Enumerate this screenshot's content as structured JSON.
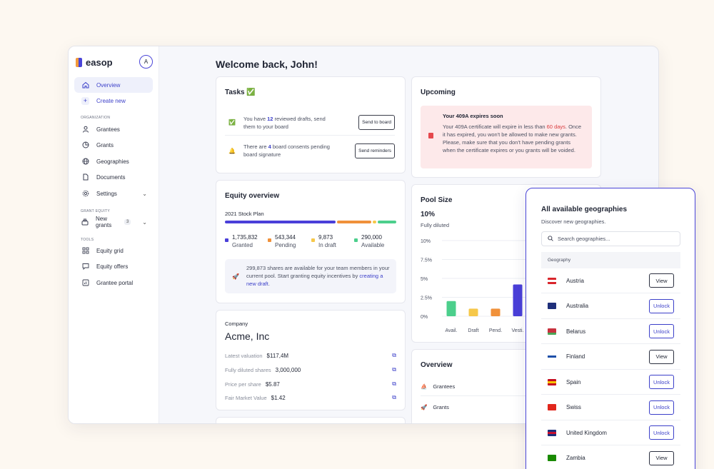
{
  "sidebar": {
    "brand": "easop",
    "avatar_initial": "A",
    "items_top": [
      {
        "label": "Overview",
        "icon": "home-icon",
        "active": true
      },
      {
        "label": "Create new",
        "icon": "plus-icon"
      }
    ],
    "section_organization": "Organization",
    "items_org": [
      {
        "label": "Grantees",
        "icon": "user-icon"
      },
      {
        "label": "Grants",
        "icon": "pie-chart-icon"
      },
      {
        "label": "Geographies",
        "icon": "globe-icon"
      },
      {
        "label": "Documents",
        "icon": "document-icon"
      },
      {
        "label": "Settings",
        "icon": "gear-icon"
      }
    ],
    "section_grant_equity": "Grant equity",
    "new_grants": {
      "label": "New grants",
      "count": "3"
    },
    "section_tools": "Tools",
    "items_tools": [
      {
        "label": "Equity grid",
        "icon": "grid-icon"
      },
      {
        "label": "Equity offers",
        "icon": "message-icon"
      },
      {
        "label": "Grantee portal",
        "icon": "chart-icon"
      }
    ]
  },
  "main": {
    "welcome": "Welcome back, John!",
    "tasks": {
      "title": "Tasks ✅",
      "items": [
        {
          "pre": "You have ",
          "num": "12",
          "post": " reviewed drafts, send them to your board",
          "button": "Send to board",
          "icon": "✅"
        },
        {
          "pre": "There are ",
          "num": "4",
          "post": " board consents pending board signature",
          "button": "Send reminders",
          "icon": "🔔"
        }
      ]
    },
    "equity": {
      "title": "Equity overview",
      "plan": "2021 Stock Plan",
      "legend": [
        {
          "value": "1,735,832",
          "label": "Granted",
          "color": "#4a3fd9"
        },
        {
          "value": "543,344",
          "label": "Pending",
          "color": "#f0913a"
        },
        {
          "value": "9,873",
          "label": "In draft",
          "color": "#f6c84a"
        },
        {
          "value": "290,000",
          "label": "Available",
          "color": "#4ccf8c"
        }
      ],
      "info_text": "299,873 shares are available for your team members in your current pool. Start granting equity incentives by ",
      "info_link": "creating a new draft",
      "info_end": "."
    },
    "company": {
      "label": "Company",
      "name": "Acme, Inc",
      "rows": [
        {
          "label": "Latest valuation",
          "value": "$117,4M"
        },
        {
          "label": "Fully diluted shares",
          "value": "3,000,000"
        },
        {
          "label": "Price per share",
          "value": "$5.87"
        },
        {
          "label": "Fair Market Value",
          "value": "$1.42"
        }
      ]
    },
    "upcoming": {
      "title": "Upcoming",
      "alert_title": "Your 409A expires soon",
      "alert_pre": "Your 409A certificate will expire in less than ",
      "alert_days": "60 days",
      "alert_post": ". Once it has expired, you won't be allowed to make new grants. Please, make sure that you don't have pending grants when the certificate expires or you grants will be voided."
    },
    "pool": {
      "title": "Pool Size",
      "percent": "10%",
      "subtitle": "Fully diluted"
    },
    "overview": {
      "title": "Overview",
      "rows": [
        {
          "icon": "⛵",
          "label": "Grantees"
        },
        {
          "icon": "🚀",
          "label": "Grants"
        }
      ]
    }
  },
  "chart_data": {
    "type": "bar",
    "categories": [
      "Avail.",
      "Draft",
      "Pend.",
      "Vesti."
    ],
    "values": [
      2.0,
      1.0,
      1.0,
      4.2
    ],
    "colors": [
      "#4ccf8c",
      "#f6c84a",
      "#f0913a",
      "#4a3fd9"
    ],
    "yticks": [
      "10%",
      "7.5%",
      "5%",
      "2.5%",
      "0%"
    ],
    "ylim": [
      0,
      10
    ],
    "grid": true
  },
  "geographies": {
    "title": "All available geographies",
    "subtitle": "Discover new geographies.",
    "search_placeholder": "Search geographies...",
    "column": "Geography",
    "rows": [
      {
        "name": "Austria",
        "action": "View",
        "flag": [
          "#d9252b",
          "#ffffff",
          "#d9252b"
        ]
      },
      {
        "name": "Australia",
        "action": "Unlock",
        "flag": [
          "#1f2f7a",
          "#1f2f7a",
          "#1f2f7a"
        ]
      },
      {
        "name": "Belarus",
        "action": "Unlock",
        "flag": [
          "#c8313e",
          "#c8313e",
          "#4aa657"
        ]
      },
      {
        "name": "Finland",
        "action": "View",
        "flag": [
          "#ffffff",
          "#1e4fa8",
          "#ffffff"
        ]
      },
      {
        "name": "Spain",
        "action": "Unlock",
        "flag": [
          "#c60b1e",
          "#f5c400",
          "#c60b1e"
        ]
      },
      {
        "name": "Swiss",
        "action": "Unlock",
        "flag": [
          "#e1261c",
          "#e1261c",
          "#e1261c"
        ]
      },
      {
        "name": "United Kingdom",
        "action": "Unlock",
        "flag": [
          "#1d2d7a",
          "#c8102e",
          "#1d2d7a"
        ]
      },
      {
        "name": "Zambia",
        "action": "View",
        "flag": [
          "#198a00",
          "#198a00",
          "#198a00"
        ]
      }
    ]
  }
}
